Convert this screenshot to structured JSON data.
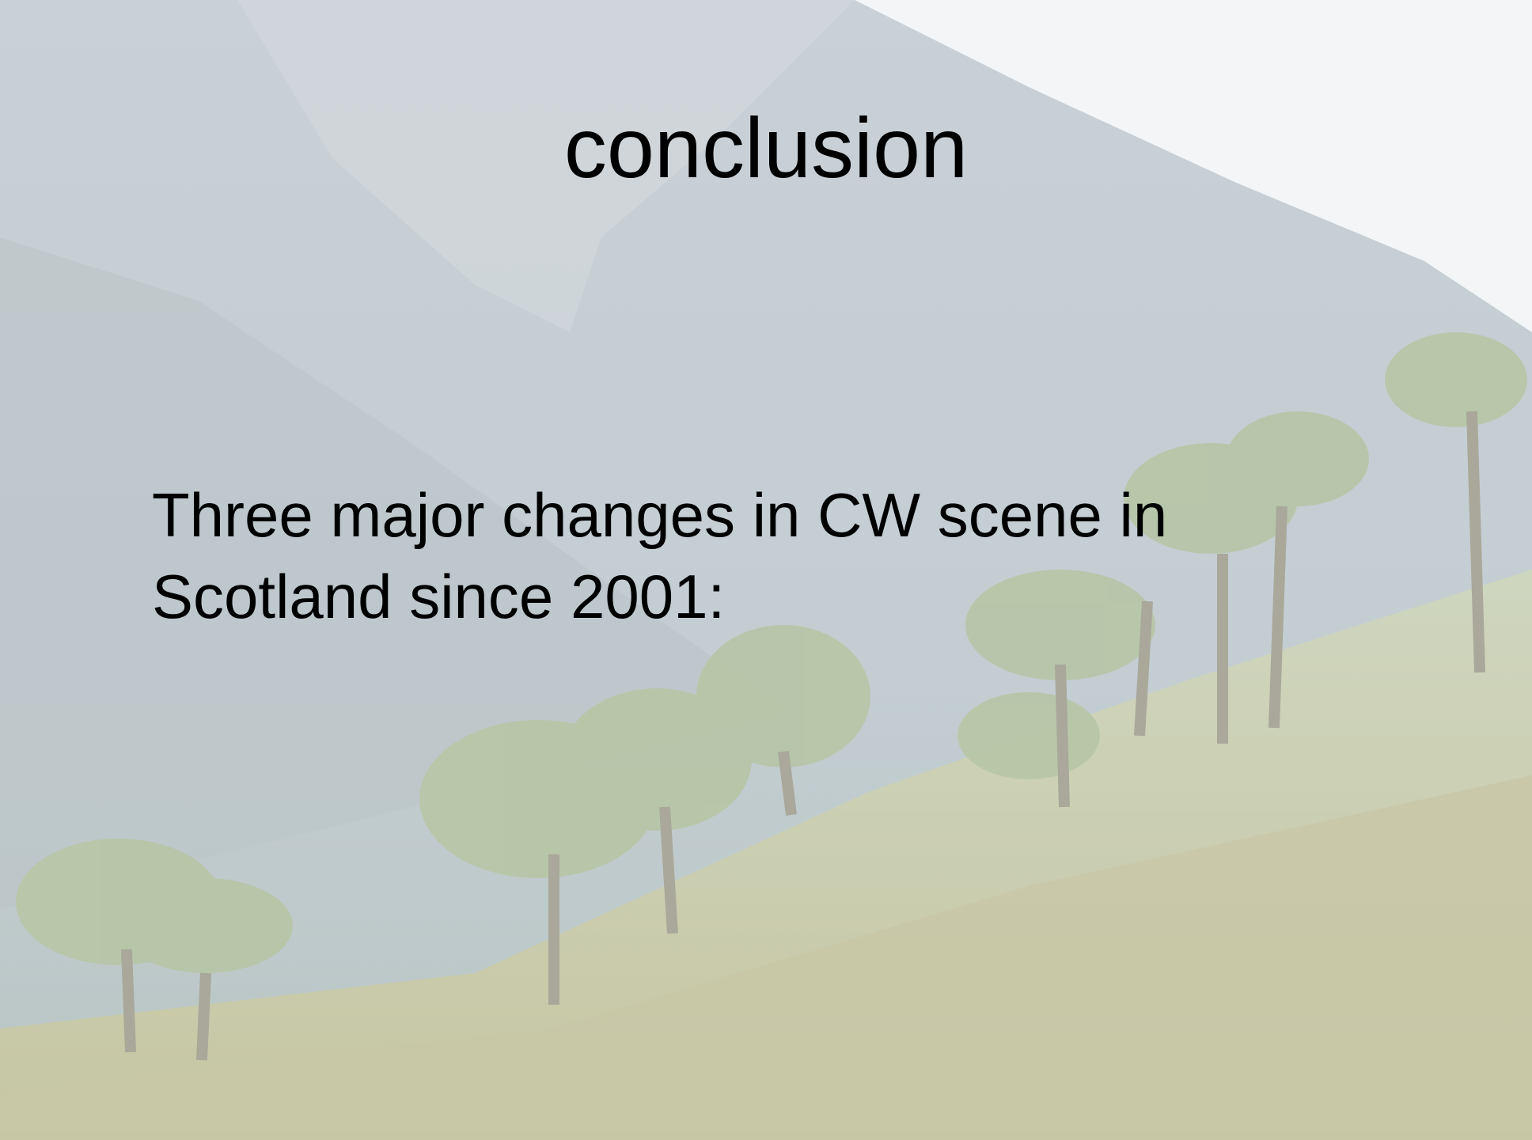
{
  "title": "conclusion",
  "body": "Three major changes in CW scene in Scotland since 2001:"
}
